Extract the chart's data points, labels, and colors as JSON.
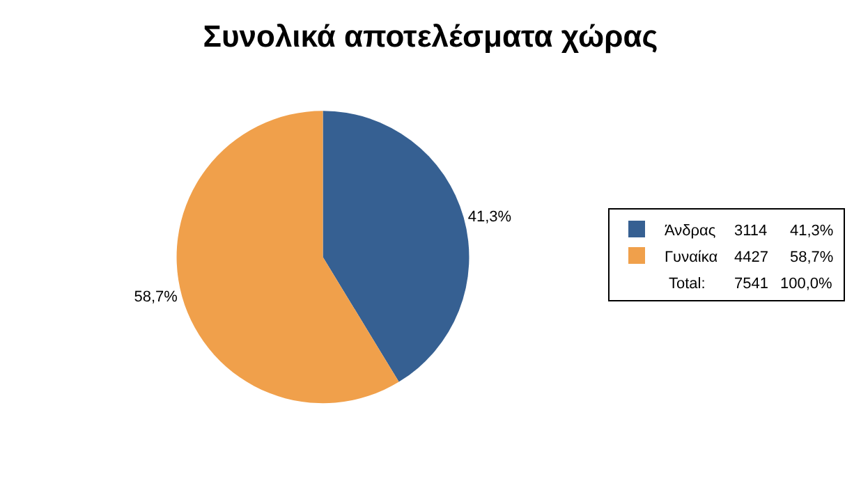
{
  "chart_data": {
    "type": "pie",
    "title": "Συνολικά αποτελέσματα χώρας",
    "categories": [
      "Άνδρας",
      "Γυναίκα"
    ],
    "values": [
      41.3,
      58.7
    ],
    "colors": [
      "#366092",
      "#f0a04b"
    ],
    "value_labels": [
      "41,3%",
      "58,7%"
    ],
    "legend": "right",
    "annotations": [
      "3114",
      "4427",
      "Total:",
      "7541",
      "100,0%"
    ]
  }
}
